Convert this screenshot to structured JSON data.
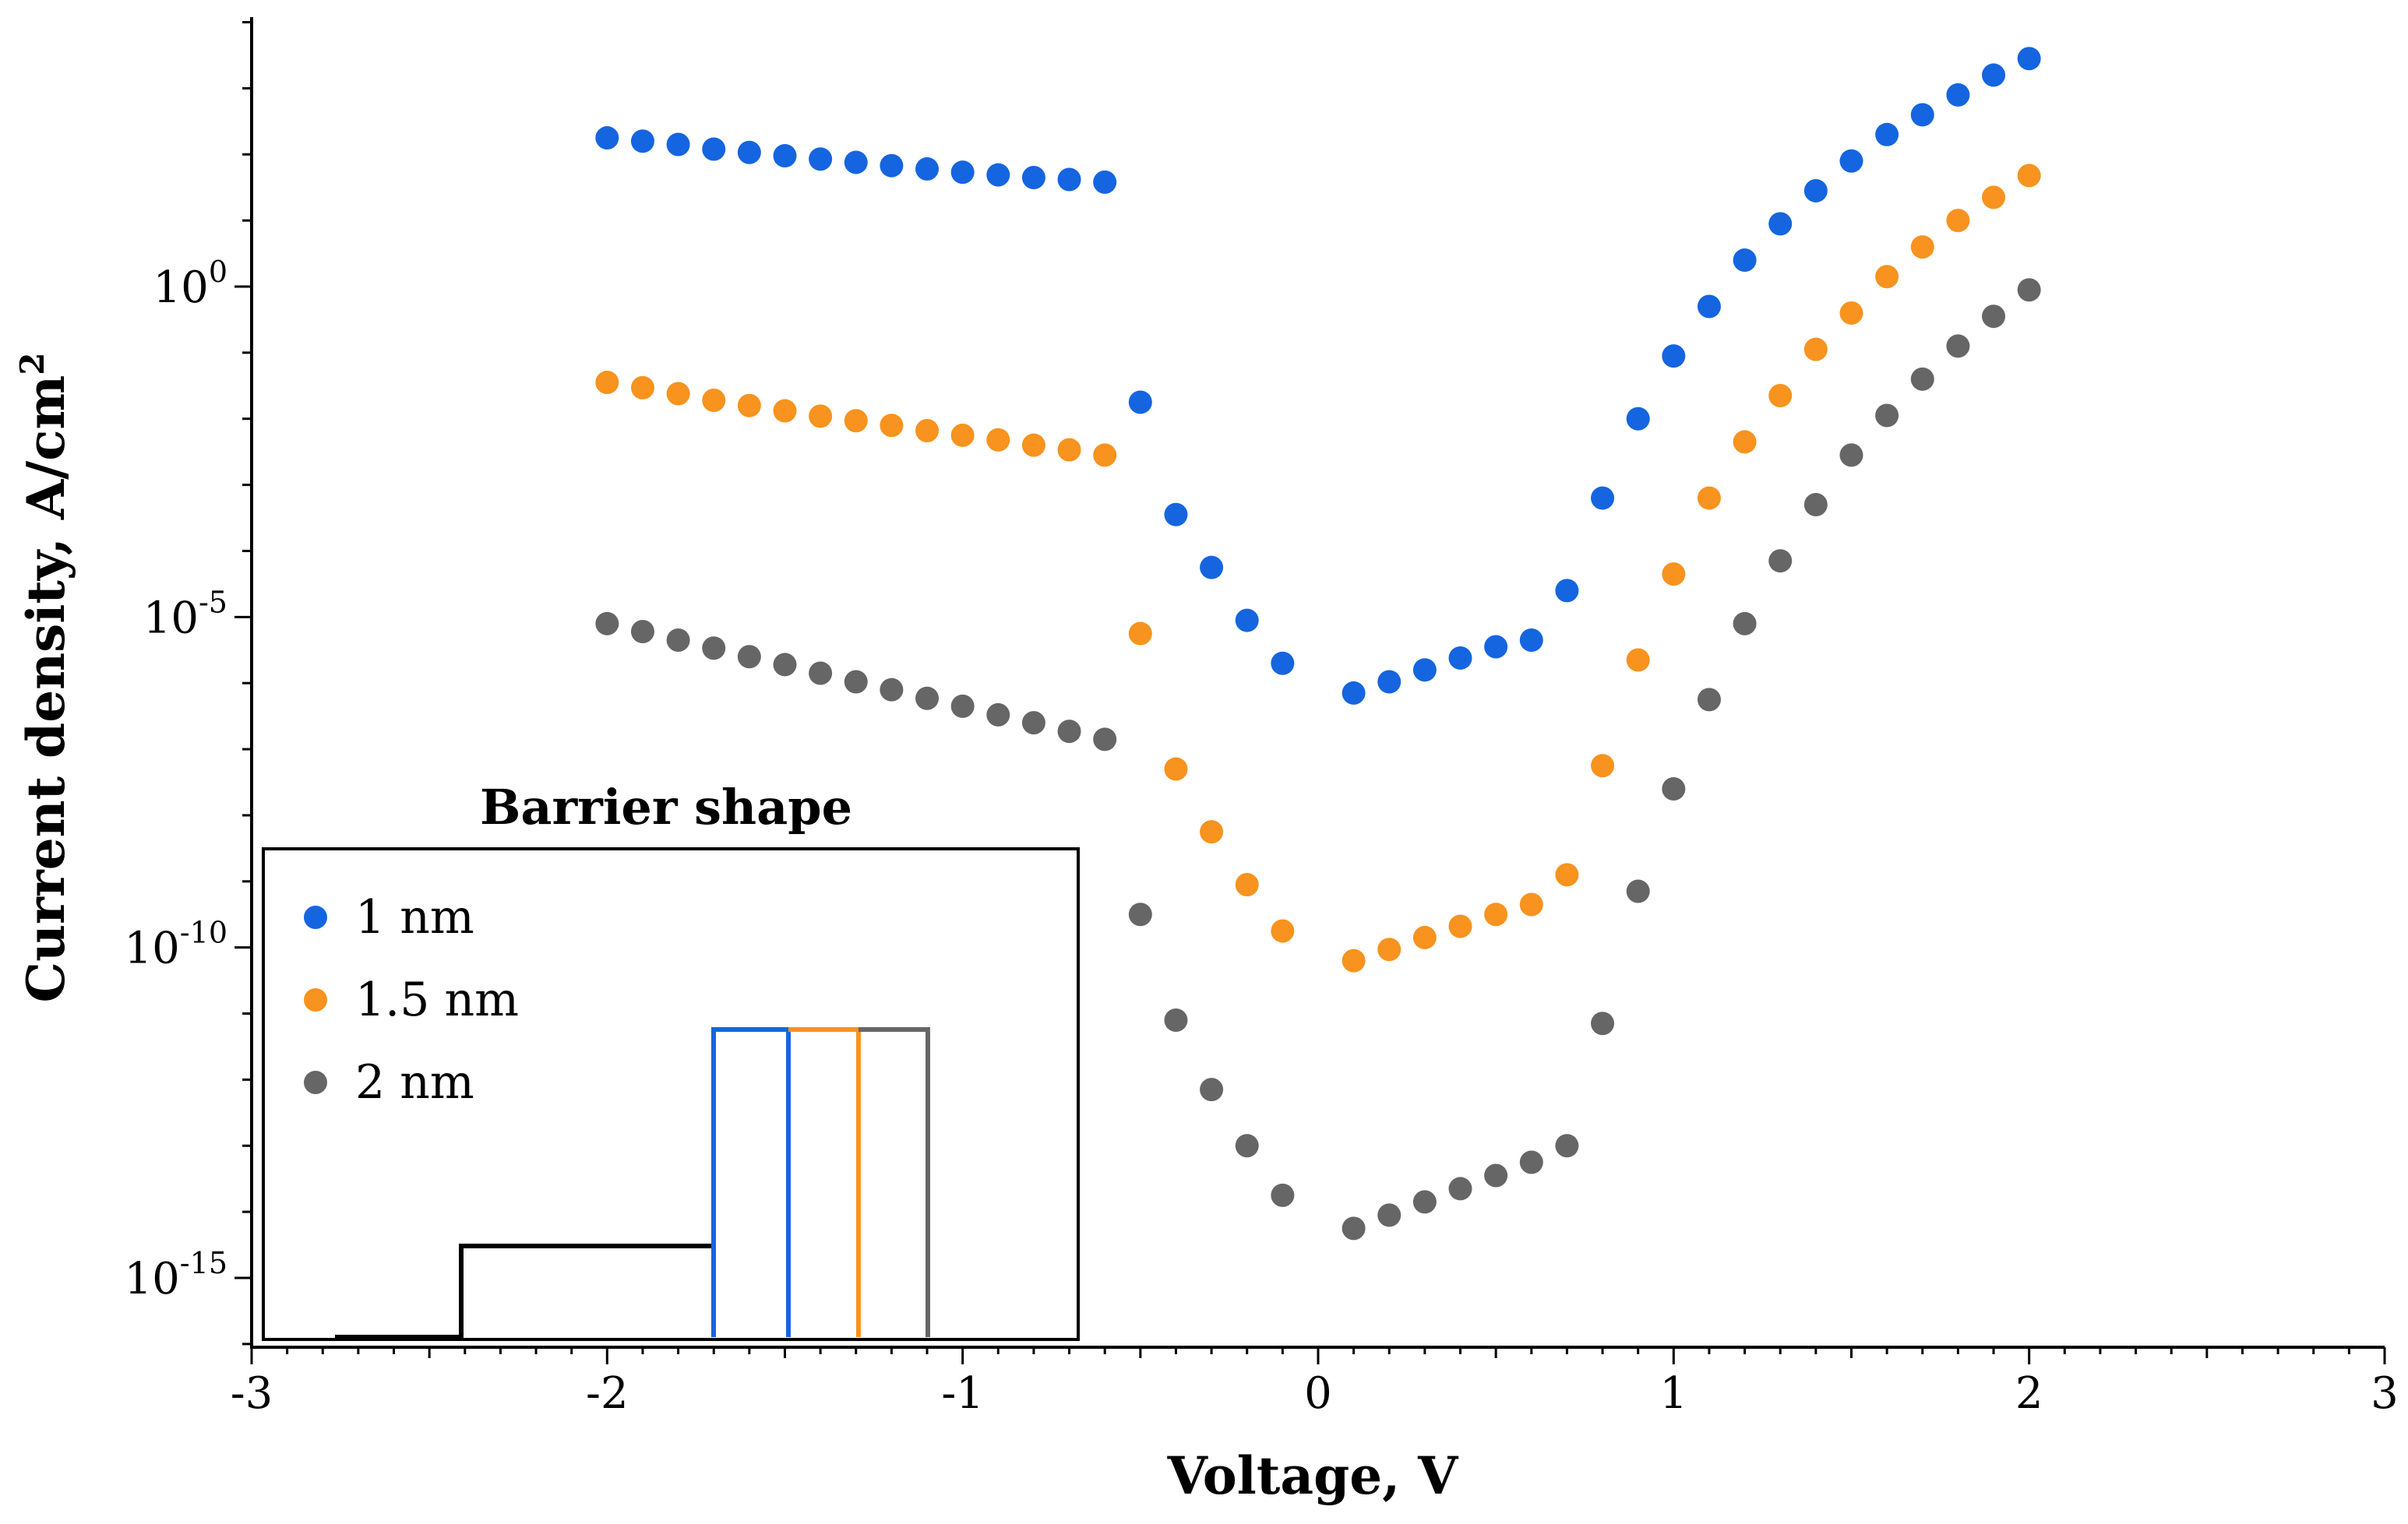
{
  "chart_data": {
    "type": "scatter",
    "title": "",
    "xlabel": "Voltage, V",
    "ylabel_main": "Current density, A/cm",
    "ylabel_sup": "2",
    "xlim": [
      -3,
      3
    ],
    "ylim_log10": [
      -16,
      4
    ],
    "y_scale": "log",
    "x_ticks": [
      -3,
      -2,
      -1,
      0,
      1,
      2,
      3
    ],
    "x_tick_labels": [
      "-3",
      "-2",
      "-1",
      "0",
      "1",
      "2",
      "3"
    ],
    "y_ticks": [
      {
        "exp": 0,
        "base": "10",
        "sup": "0"
      },
      {
        "exp": -5,
        "base": "10",
        "sup": "-5"
      },
      {
        "exp": -10,
        "base": "10",
        "sup": "-10"
      },
      {
        "exp": -15,
        "base": "10",
        "sup": "-15"
      }
    ],
    "x": [
      -2,
      -1.9,
      -1.8,
      -1.7,
      -1.6,
      -1.5,
      -1.4,
      -1.3,
      -1.2,
      -1.1,
      -1.0,
      -0.9,
      -0.8,
      -0.7,
      -0.6,
      -0.5,
      -0.4,
      -0.3,
      -0.2,
      -0.1,
      0.1,
      0.2,
      0.3,
      0.4,
      0.5,
      0.6,
      0.7,
      0.8,
      0.9,
      1.0,
      1.1,
      1.2,
      1.3,
      1.4,
      1.5,
      1.6,
      1.7,
      1.8,
      1.9,
      2.0
    ],
    "series": [
      {
        "name": "1 nm",
        "color": "#1565e0",
        "log10_values": [
          2.25,
          2.2,
          2.15,
          2.08,
          2.03,
          1.98,
          1.93,
          1.88,
          1.83,
          1.78,
          1.73,
          1.69,
          1.65,
          1.62,
          1.58,
          -1.75,
          -3.45,
          -4.25,
          -5.05,
          -5.7,
          -6.15,
          -5.98,
          -5.8,
          -5.62,
          -5.45,
          -5.35,
          -4.6,
          -3.2,
          -2.0,
          -1.05,
          -0.3,
          0.4,
          0.95,
          1.45,
          1.9,
          2.3,
          2.6,
          2.9,
          3.2,
          3.45
        ]
      },
      {
        "name": "1.5 nm",
        "color": "#f7931e",
        "log10_values": [
          -1.45,
          -1.53,
          -1.62,
          -1.72,
          -1.8,
          -1.88,
          -1.96,
          -2.03,
          -2.1,
          -2.18,
          -2.25,
          -2.32,
          -2.4,
          -2.47,
          -2.55,
          -5.25,
          -7.3,
          -8.25,
          -9.05,
          -9.75,
          -10.2,
          -10.03,
          -9.85,
          -9.68,
          -9.5,
          -9.35,
          -8.9,
          -7.25,
          -5.65,
          -4.35,
          -3.2,
          -2.35,
          -1.65,
          -0.95,
          -0.4,
          0.15,
          0.6,
          1.0,
          1.35,
          1.68
        ]
      },
      {
        "name": "2 nm",
        "color": "#666666",
        "log10_values": [
          -5.1,
          -5.22,
          -5.35,
          -5.47,
          -5.6,
          -5.72,
          -5.85,
          -5.98,
          -6.1,
          -6.23,
          -6.35,
          -6.48,
          -6.6,
          -6.73,
          -6.85,
          -9.5,
          -11.1,
          -12.15,
          -13.0,
          -13.75,
          -14.25,
          -14.05,
          -13.85,
          -13.65,
          -13.45,
          -13.25,
          -13.0,
          -11.15,
          -9.15,
          -7.6,
          -6.25,
          -5.1,
          -4.15,
          -3.3,
          -2.55,
          -1.95,
          -1.4,
          -0.9,
          -0.45,
          -0.05
        ]
      }
    ],
    "legend": {
      "title": "Barrier shape",
      "placement": "bottom-left",
      "entries": [
        "1 nm",
        "1.5 nm",
        "2 nm"
      ]
    }
  }
}
